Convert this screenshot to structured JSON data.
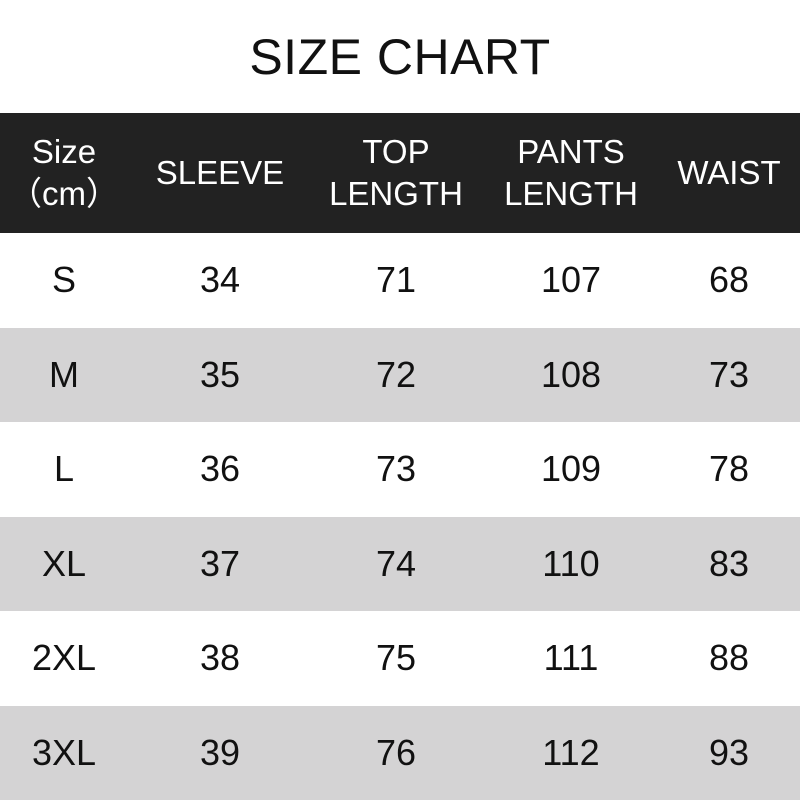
{
  "title": "SIZE CHART",
  "columns": [
    [
      "Size",
      "（cm）"
    ],
    [
      "SLEEVE"
    ],
    [
      "TOP",
      "LENGTH"
    ],
    [
      "PANTS",
      "LENGTH"
    ],
    [
      "WAIST"
    ]
  ],
  "rows": [
    [
      "S",
      "34",
      "71",
      "107",
      "68"
    ],
    [
      "M",
      "35",
      "72",
      "108",
      "73"
    ],
    [
      "L",
      "36",
      "73",
      "109",
      "78"
    ],
    [
      "XL",
      "37",
      "74",
      "110",
      "83"
    ],
    [
      "2XL",
      "38",
      "75",
      "111",
      "88"
    ],
    [
      "3XL",
      "39",
      "76",
      "112",
      "93"
    ]
  ],
  "colors": {
    "header_bg": "#222222",
    "alt_row_bg": "#d4d3d4"
  }
}
